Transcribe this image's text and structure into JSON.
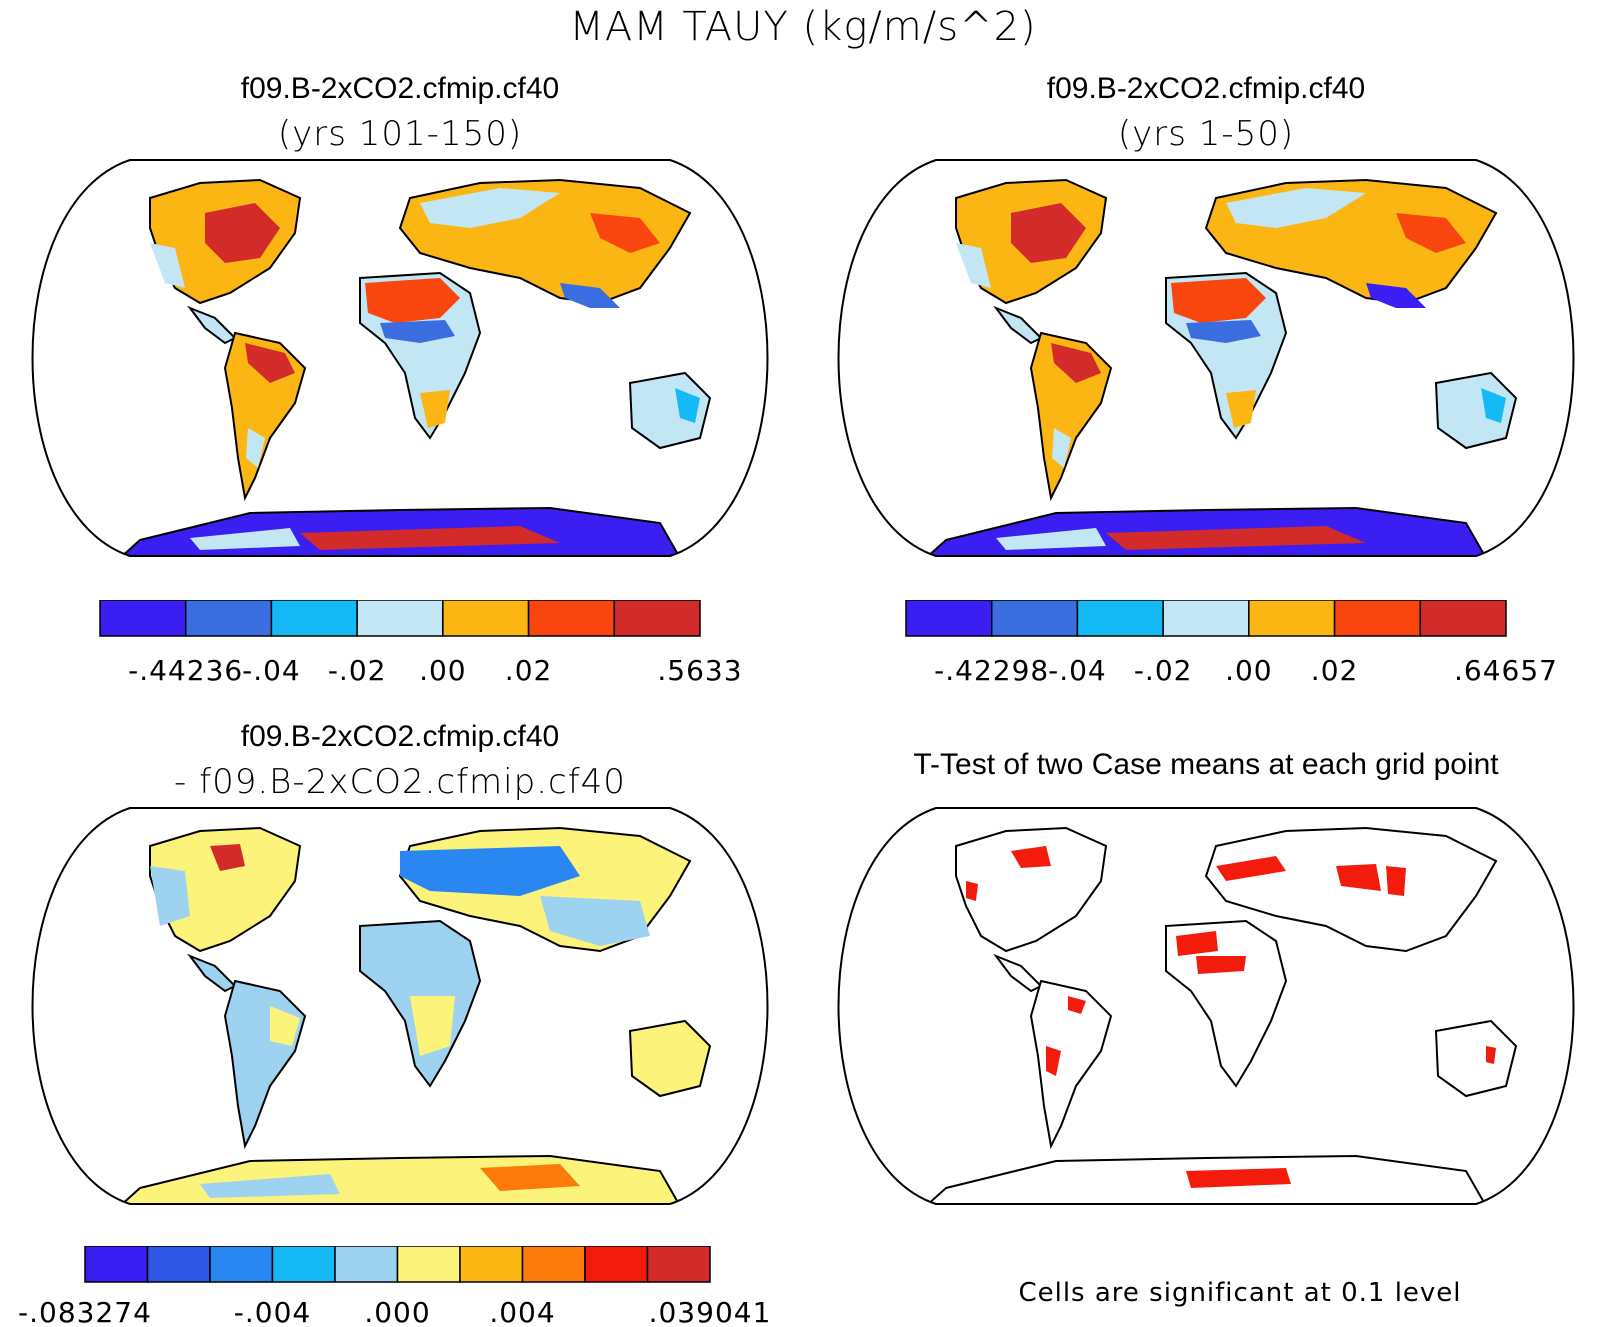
{
  "figure": {
    "title": "MAM TAUY (kg/m/s^2)",
    "footnote": "Cells are significant at 0.1 level"
  },
  "panels": [
    {
      "id": "case1",
      "title": "f09.B-2xCO2.cfmip.cf40",
      "subtitle": "(yrs 101-150)",
      "colorbar": {
        "colors": [
          "#3a1ef2",
          "#3a6ee0",
          "#14b9f5",
          "#c3e6f5",
          "#fbb614",
          "#f9460e",
          "#d32a2a"
        ],
        "labels": [
          "-.44236",
          "-.04",
          "-.02",
          ".00",
          ".02",
          ".5633"
        ],
        "label_boundaries": [
          1,
          2,
          3,
          4,
          5,
          7
        ]
      }
    },
    {
      "id": "case2",
      "title": "f09.B-2xCO2.cfmip.cf40",
      "subtitle": "(yrs 1-50)",
      "colorbar": {
        "colors": [
          "#3a1ef2",
          "#3a6ee0",
          "#14b9f5",
          "#c3e6f5",
          "#fbb614",
          "#f9460e",
          "#d32a2a"
        ],
        "labels": [
          "-.42298",
          "-.04",
          "-.02",
          ".00",
          ".02",
          ".64657"
        ],
        "label_boundaries": [
          1,
          2,
          3,
          4,
          5,
          7
        ]
      }
    },
    {
      "id": "diff",
      "title": "f09.B-2xCO2.cfmip.cf40",
      "subtitle": "- f09.B-2xCO2.cfmip.cf40",
      "colorbar": {
        "colors": [
          "#3a1ef2",
          "#2f56e3",
          "#2a86f0",
          "#14b9f5",
          "#9dd3f0",
          "#fcf37a",
          "#fbb614",
          "#fb7a0a",
          "#f31b0b",
          "#d32a2a"
        ],
        "labels": [
          "-.083274",
          "-.004",
          ".000",
          ".004",
          ".039041"
        ],
        "label_boundaries": [
          0,
          3,
          5,
          7,
          10
        ]
      }
    },
    {
      "id": "ttest",
      "title": "T-Test of two Case means at each grid point",
      "subtitle": ""
    }
  ]
}
